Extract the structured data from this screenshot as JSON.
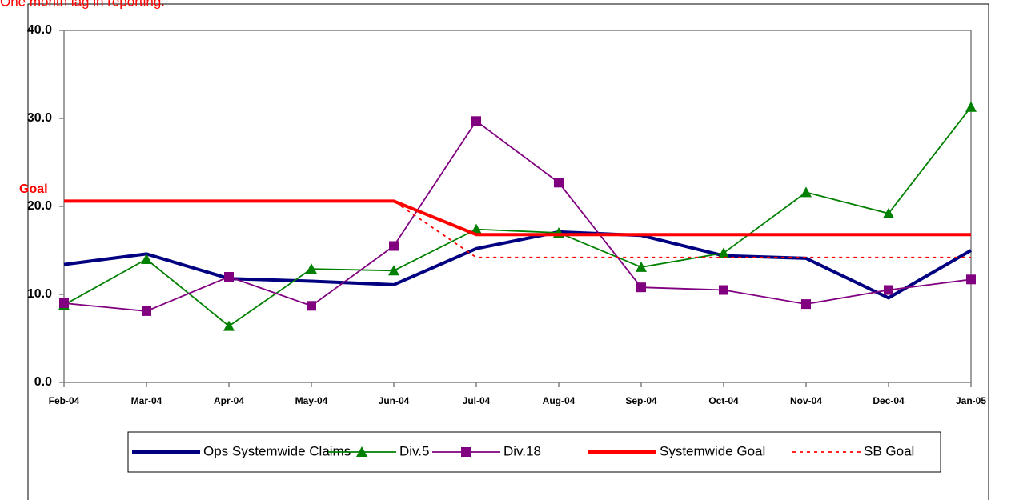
{
  "chart_data": {
    "type": "line",
    "annotations": [
      "One month lag in reporting.",
      "Goal"
    ],
    "categories": [
      "Feb-04",
      "Mar-04",
      "Apr-04",
      "May-04",
      "Jun-04",
      "Jul-04",
      "Aug-04",
      "Sep-04",
      "Oct-04",
      "Nov-04",
      "Dec-04",
      "Jan-05"
    ],
    "ylim": [
      0,
      40
    ],
    "yticks": [
      {
        "value": 0,
        "label": "0.0"
      },
      {
        "value": 10,
        "label": "10.0"
      },
      {
        "value": 20,
        "label": "20.0"
      },
      {
        "value": 30,
        "label": "30.0"
      },
      {
        "value": 40,
        "label": "40.0"
      }
    ],
    "grid": false,
    "legend": "bottom",
    "series": [
      {
        "name": "Ops Systemwide Claims",
        "color": "#000080",
        "values": [
          13.4,
          14.6,
          11.8,
          11.5,
          11.1,
          15.2,
          17.1,
          16.7,
          14.4,
          14.1,
          9.6,
          15.0
        ]
      },
      {
        "name": "Div.5",
        "color": "#008000",
        "marker": "triangle",
        "values": [
          8.8,
          14.0,
          6.4,
          12.9,
          12.7,
          17.4,
          17.0,
          13.1,
          14.7,
          21.6,
          19.2,
          31.3
        ]
      },
      {
        "name": "Div.18",
        "color": "#800080",
        "marker": "square",
        "values": [
          9.0,
          8.1,
          12.0,
          8.7,
          15.5,
          29.7,
          22.7,
          10.8,
          10.5,
          8.9,
          10.5,
          11.7
        ]
      },
      {
        "name": "Systemwide Goal",
        "color": "#ff0000",
        "values": [
          20.6,
          20.6,
          20.6,
          20.6,
          20.6,
          16.8,
          16.8,
          16.8,
          16.8,
          16.8,
          16.8,
          16.8
        ]
      },
      {
        "name": "SB Goal",
        "color": "#ff0000",
        "dashed": true,
        "values": [
          20.6,
          20.6,
          20.6,
          20.6,
          20.6,
          14.2,
          14.2,
          14.2,
          14.2,
          14.2,
          14.2,
          14.2
        ]
      }
    ]
  }
}
